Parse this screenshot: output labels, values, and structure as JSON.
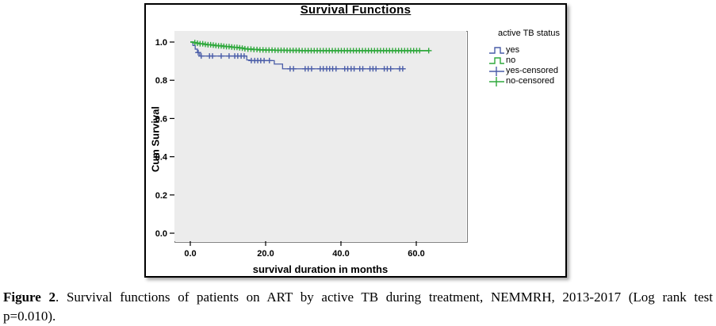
{
  "caption": {
    "figure_label": "Figure 2",
    "line1_rest": ". Survival functions of patients on ART by active TB during treatment, NEMMRH, 2013-2017 (Log rank test",
    "line2": "p=0.010)."
  },
  "colors": {
    "yes_blue": "#4a5da8",
    "no_green": "#2fa83c",
    "plot_background": "#ececec",
    "box_border": "#000000"
  },
  "chart_data": {
    "type": "line",
    "subtype": "kaplan-meier-step",
    "title": "Survival Functions",
    "xlabel": "survival duration in months",
    "ylabel": "Cum Survival",
    "xlim": [
      -4.2,
      73.3
    ],
    "ylim": [
      -0.04,
      1.06
    ],
    "grid": false,
    "xticks": [
      {
        "v": 0,
        "label": "0.0"
      },
      {
        "v": 20,
        "label": "20.0"
      },
      {
        "v": 40,
        "label": "40.0"
      },
      {
        "v": 60,
        "label": "60.0"
      }
    ],
    "yticks": [
      {
        "v": 0.0,
        "label": "0.0"
      },
      {
        "v": 0.2,
        "label": "0.2"
      },
      {
        "v": 0.4,
        "label": "0.4"
      },
      {
        "v": 0.6,
        "label": "0.6"
      },
      {
        "v": 0.8,
        "label": "0.8"
      },
      {
        "v": 1.0,
        "label": "1.0"
      }
    ],
    "legend_title": "active TB status",
    "legend_position": "right-top-outside",
    "legend_entries": [
      {
        "label": "yes",
        "glyph": "step-line",
        "color": "#4a5da8"
      },
      {
        "label": "no",
        "glyph": "step-line",
        "color": "#2fa83c"
      },
      {
        "label": "yes-censored",
        "glyph": "plus-line",
        "color": "#4a5da8"
      },
      {
        "label": "no-censored",
        "glyph": "plus-line",
        "color": "#2fa83c"
      }
    ],
    "series": [
      {
        "name": "yes",
        "color": "#4a5da8",
        "line_width": 1.3,
        "points": [
          [
            0,
            1.0
          ],
          [
            0.7,
            1.0
          ],
          [
            0.7,
            0.982
          ],
          [
            1.3,
            0.982
          ],
          [
            1.3,
            0.963
          ],
          [
            1.9,
            0.963
          ],
          [
            1.9,
            0.945
          ],
          [
            2.5,
            0.945
          ],
          [
            2.5,
            0.927
          ],
          [
            15.0,
            0.927
          ],
          [
            15.0,
            0.906
          ],
          [
            15.8,
            0.906
          ],
          [
            15.8,
            0.903
          ],
          [
            22.3,
            0.903
          ],
          [
            22.3,
            0.885
          ],
          [
            24.5,
            0.885
          ],
          [
            24.5,
            0.86
          ],
          [
            56.8,
            0.86
          ]
        ],
        "censored_x": [
          2.1,
          2.9,
          5.1,
          5.9,
          8.2,
          10.3,
          11.8,
          12.6,
          13.5,
          14.3,
          16.2,
          17.1,
          17.9,
          18.7,
          19.6,
          21.0,
          26.5,
          27.4,
          30.5,
          31.3,
          32.2,
          34.5,
          35.3,
          36.2,
          37.0,
          37.8,
          38.7,
          41.0,
          41.8,
          42.7,
          43.5,
          45.0,
          45.8,
          47.7,
          48.5,
          49.3,
          51.5,
          52.3,
          53.2,
          55.6,
          56.4
        ]
      },
      {
        "name": "no",
        "color": "#2fa83c",
        "line_width": 1.8,
        "points": [
          [
            0,
            1.0
          ],
          [
            0.8,
            1.0
          ],
          [
            0.8,
            0.997
          ],
          [
            1.6,
            0.997
          ],
          [
            1.6,
            0.994
          ],
          [
            2.5,
            0.994
          ],
          [
            2.5,
            0.991
          ],
          [
            3.5,
            0.991
          ],
          [
            3.5,
            0.988
          ],
          [
            4.5,
            0.988
          ],
          [
            4.5,
            0.986
          ],
          [
            5.5,
            0.986
          ],
          [
            5.5,
            0.984
          ],
          [
            6.5,
            0.984
          ],
          [
            6.5,
            0.982
          ],
          [
            7.5,
            0.982
          ],
          [
            7.5,
            0.98
          ],
          [
            8.5,
            0.98
          ],
          [
            8.5,
            0.978
          ],
          [
            9.5,
            0.978
          ],
          [
            9.5,
            0.976
          ],
          [
            10.5,
            0.976
          ],
          [
            10.5,
            0.974
          ],
          [
            11.5,
            0.974
          ],
          [
            11.5,
            0.972
          ],
          [
            12.5,
            0.972
          ],
          [
            12.5,
            0.97
          ],
          [
            13.5,
            0.97
          ],
          [
            13.5,
            0.968
          ],
          [
            14.3,
            0.968
          ],
          [
            14.3,
            0.965
          ],
          [
            15.2,
            0.965
          ],
          [
            15.2,
            0.963
          ],
          [
            16.5,
            0.963
          ],
          [
            16.5,
            0.961
          ],
          [
            18.0,
            0.961
          ],
          [
            18.0,
            0.959
          ],
          [
            20.0,
            0.959
          ],
          [
            20.0,
            0.958
          ],
          [
            22.5,
            0.958
          ],
          [
            22.5,
            0.957
          ],
          [
            25.5,
            0.957
          ],
          [
            25.5,
            0.956
          ],
          [
            29.0,
            0.956
          ],
          [
            29.0,
            0.955
          ],
          [
            63.3,
            0.955
          ]
        ],
        "censored_x": [
          1.2,
          1.9,
          2.6,
          3.3,
          4.0,
          4.7,
          5.4,
          6.1,
          6.8,
          7.5,
          8.2,
          8.9,
          9.6,
          10.3,
          11.0,
          11.7,
          12.4,
          13.1,
          13.8,
          14.5,
          15.3,
          16.1,
          16.9,
          17.7,
          18.5,
          19.3,
          20.1,
          20.9,
          21.7,
          22.5,
          23.3,
          24.1,
          24.9,
          25.7,
          26.5,
          27.3,
          28.1,
          28.9,
          29.7,
          30.5,
          31.3,
          32.1,
          32.9,
          33.7,
          34.5,
          35.3,
          36.1,
          36.9,
          37.7,
          38.5,
          39.3,
          40.1,
          40.9,
          41.7,
          42.5,
          43.3,
          44.1,
          44.9,
          45.7,
          46.5,
          47.3,
          48.1,
          48.9,
          49.7,
          50.5,
          51.3,
          52.1,
          52.9,
          53.7,
          54.5,
          55.3,
          56.1,
          56.9,
          57.7,
          58.5,
          59.3,
          60.1,
          60.9,
          63.3
        ]
      }
    ]
  }
}
